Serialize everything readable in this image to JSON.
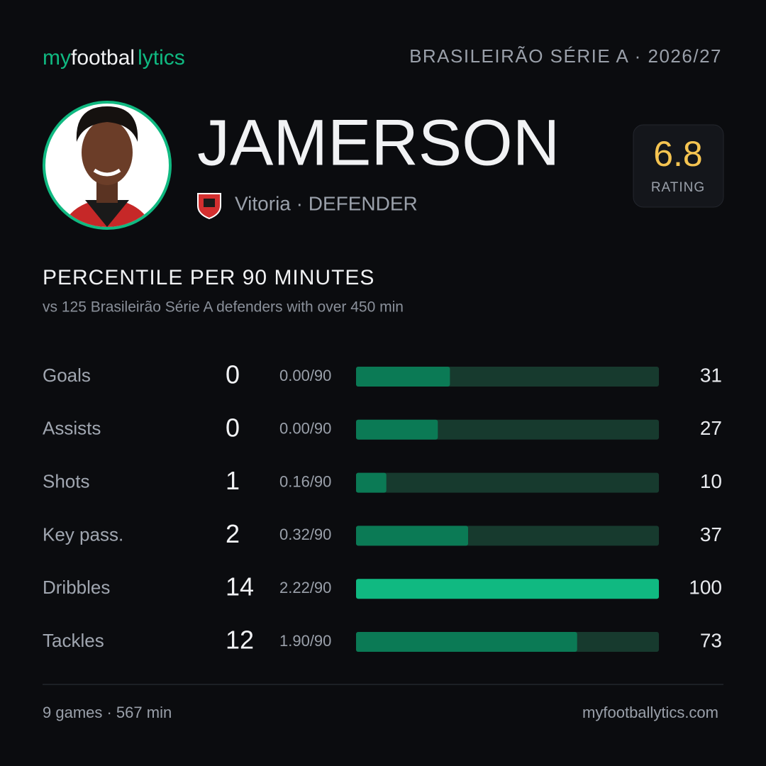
{
  "header": {
    "brand": [
      "my",
      "footbal",
      "lytics"
    ],
    "league": "BRASILEIRÃO SÉRIE A · 2026/27"
  },
  "player": {
    "name": "JAMERSON",
    "subtitle": "Vitoria · DEFENDER"
  },
  "rating": {
    "value": "6.8",
    "label": "RATING"
  },
  "section": {
    "title": "PERCENTILE PER 90 MINUTES",
    "subtitle": "vs 125 Brasileirão Série A defenders with over 450 min"
  },
  "stats": {
    "xlim": [
      0,
      100
    ],
    "bar_color": "#0b7a55",
    "top_color": "#10b981",
    "track_color": "#173a2e",
    "rows": [
      {
        "label": "Goals",
        "total": 0,
        "per90": "0.00/90",
        "percentile": 31
      },
      {
        "label": "Assists",
        "total": 0,
        "per90": "0.00/90",
        "percentile": 27
      },
      {
        "label": "Shots",
        "total": 1,
        "per90": "0.16/90",
        "percentile": 10
      },
      {
        "label": "Key pass.",
        "total": 2,
        "per90": "0.32/90",
        "percentile": 37
      },
      {
        "label": "Dribbles",
        "total": 14,
        "per90": "2.22/90",
        "percentile": 100
      },
      {
        "label": "Tackles",
        "total": 12,
        "per90": "1.90/90",
        "percentile": 73
      }
    ]
  },
  "footer": {
    "left": "9 games · 567 min",
    "right": "myfootballytics.com"
  }
}
